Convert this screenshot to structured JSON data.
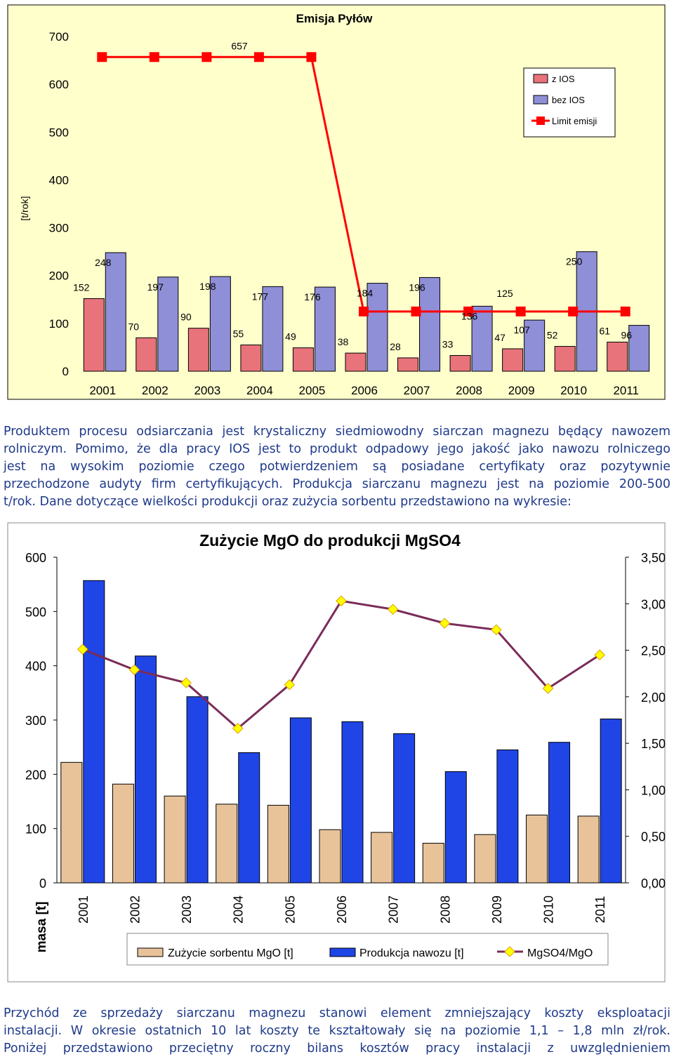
{
  "chart1": {
    "chart_data": {
      "type": "bar",
      "title": "Emisja Pyłów",
      "ylabel": "[t/rok]",
      "xlabel": "",
      "ylim": [
        0,
        700
      ],
      "yticks": [
        "0",
        "100",
        "200",
        "300",
        "400",
        "500",
        "600",
        "700"
      ],
      "categories": [
        "2001",
        "2002",
        "2003",
        "2004",
        "2005",
        "2006",
        "2007",
        "2008",
        "2009",
        "2010",
        "2011"
      ],
      "series": [
        {
          "name": "z IOS",
          "kind": "bar",
          "color": "#e8737b",
          "values": [
            152,
            70,
            90,
            55,
            49,
            38,
            28,
            33,
            47,
            52,
            61
          ],
          "labels": [
            "152",
            "70",
            "90",
            "55",
            "49",
            "38",
            "28",
            "33",
            "47",
            "52",
            "61"
          ]
        },
        {
          "name": "bez IOS",
          "kind": "bar",
          "color": "#8f8fd8",
          "values": [
            248,
            197,
            198,
            177,
            176,
            184,
            196,
            136,
            107,
            250,
            96
          ],
          "labels": [
            "248",
            "197",
            "198",
            "177",
            "176",
            "184",
            "196",
            "136",
            "107",
            "250",
            "96"
          ]
        },
        {
          "name": "Limit emisji",
          "kind": "line",
          "color": "#ff0000",
          "values": [
            657,
            657,
            657,
            657,
            657,
            125,
            125,
            125,
            125,
            125,
            125
          ],
          "labels": [
            "657",
            "125"
          ]
        }
      ],
      "grid": false,
      "legend": "top-right"
    }
  },
  "paragraph1": {
    "lines": [
      "Produktem procesu odsiarczania jest krystaliczny siedmiowodny siarczan magnezu będący nawozem",
      "rolniczym. Pomimo, że dla pracy IOS jest to produkt odpadowy jego jakość jako nawozu rolniczego",
      "jest na wysokim poziomie czego potwierdzeniem są posiadane certyfikaty oraz pozytywnie",
      "przechodzone audyty firm certyfikujących. Produkcja siarczanu magnezu jest na poziomie 200-500",
      "t/rok. Dane dotyczące wielkości produkcji oraz zużycia sorbentu przedstawiono na wykresie:"
    ],
    "color_first_line": "#1f3a8a",
    "color_body": "#1f3a8a"
  },
  "chart2": {
    "chart_data": {
      "type": "bar",
      "title": "Zużycie MgO do produkcji MgSO4",
      "ylabel": "masa [t]",
      "xlabel": "",
      "ylim": [
        0,
        600
      ],
      "y2lim": [
        0,
        3.5
      ],
      "yticks": [
        "0",
        "100",
        "200",
        "300",
        "400",
        "500",
        "600"
      ],
      "y2ticks": [
        "0,00",
        "0,50",
        "1,00",
        "1,50",
        "2,00",
        "2,50",
        "3,00",
        "3,50"
      ],
      "categories": [
        "2001",
        "2002",
        "2003",
        "2004",
        "2005",
        "2006",
        "2007",
        "2008",
        "2009",
        "2010",
        "2011"
      ],
      "series": [
        {
          "name": "Zużycie sorbentu MgO [t]",
          "kind": "bar",
          "color": "#e8c39a",
          "values": [
            222,
            182,
            160,
            145,
            143,
            98,
            93,
            73,
            89,
            125,
            123
          ]
        },
        {
          "name": "Produkcja nawozu [t]",
          "kind": "bar",
          "color": "#1f45e6",
          "values": [
            557,
            418,
            343,
            240,
            304,
            297,
            275,
            205,
            245,
            259,
            302
          ]
        },
        {
          "name": "MgSO4/MgO",
          "kind": "line",
          "axis": "right",
          "color": "#7a2c5a",
          "marker_color": "#ffff00",
          "values": [
            2.51,
            2.29,
            2.15,
            1.66,
            2.13,
            3.03,
            2.94,
            2.79,
            2.72,
            2.09,
            2.45
          ]
        }
      ],
      "grid": false,
      "legend": "bottom"
    }
  },
  "paragraph2": {
    "lines": [
      "Przychód ze sprzedaży siarczanu magnezu stanowi element zmniejszający koszty eksploatacji",
      "instalacji. W okresie ostatnich 10 lat koszty te kształtowały się na poziomie 1,1 – 1,8 mln zł/rok.",
      "Poniżej przedstawiono przeciętny roczny bilans kosztów pracy instalacji z uwzględnieniem"
    ],
    "color": "#1f3a8a"
  }
}
